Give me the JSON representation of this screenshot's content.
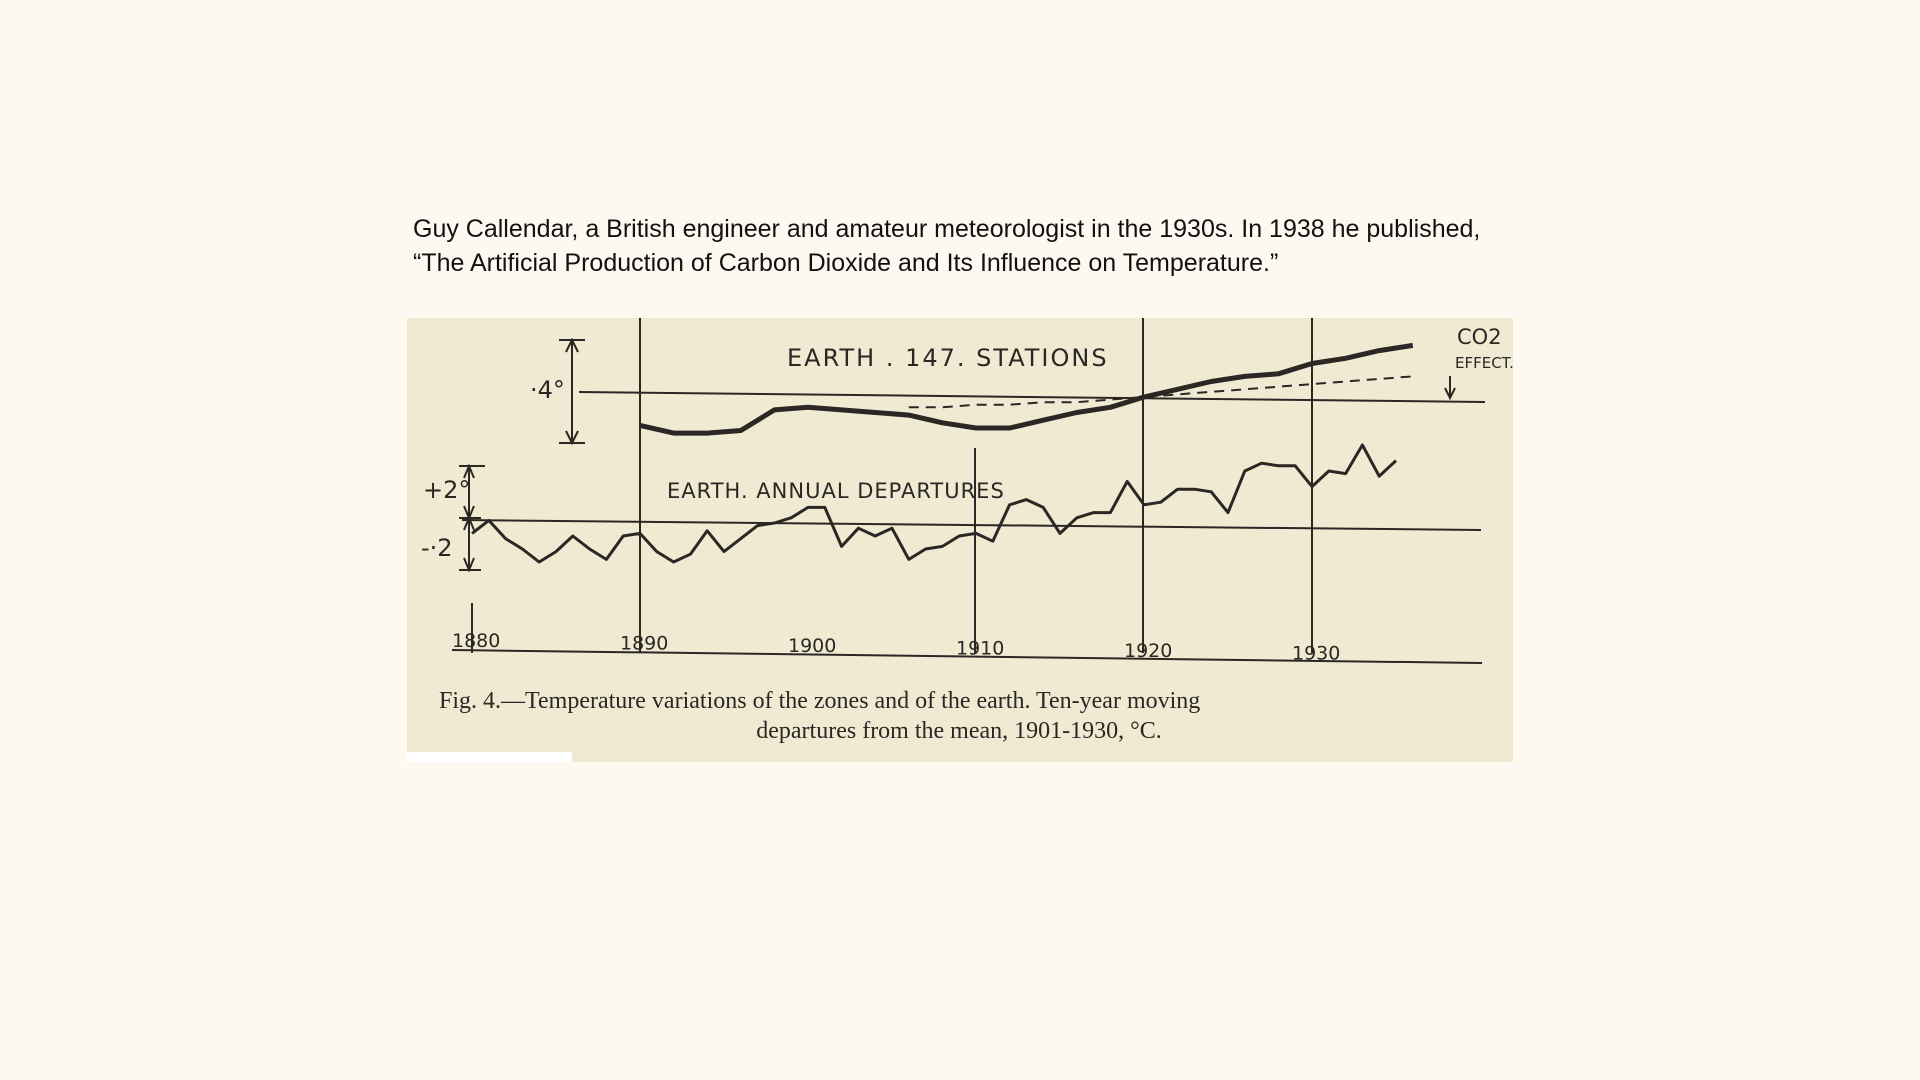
{
  "intro_text": "Guy Callendar, a British engineer and amateur meteorologist in the 1930s. In 1938 he published, “The Artificial Production of Carbon Dioxide and Its Influence on Temperature.”",
  "colors": {
    "page_bg": "#fdf9f1",
    "paper": "#f1ead2",
    "ink": "#2a2724"
  },
  "figure": {
    "caption_line1": "Fig. 4.—Temperature variations of the zones and of the earth.   Ten-year moving",
    "caption_line2": "departures from the mean, 1901-1930, °C.",
    "scale_upper": "·4°",
    "scale_plus": "+2°",
    "scale_minus": "-·2"
  },
  "chart_data": [
    {
      "type": "line",
      "title": "EARTH . 147. STATIONS",
      "annotation_1": "CO2",
      "annotation_2": "EFFECT.",
      "x": [
        1890,
        1892,
        1894,
        1896,
        1898,
        1900,
        1902,
        1904,
        1906,
        1908,
        1910,
        1912,
        1914,
        1916,
        1918,
        1920,
        1922,
        1924,
        1926,
        1928,
        1930,
        1932,
        1934,
        1936
      ],
      "series": [
        {
          "values": [
            -0.11,
            -0.14,
            -0.14,
            -0.13,
            -0.05,
            -0.04,
            -0.05,
            -0.06,
            -0.07,
            -0.1,
            -0.12,
            -0.12,
            -0.09,
            -0.06,
            -0.04,
            0.0,
            0.03,
            0.06,
            0.08,
            0.09,
            0.13,
            0.15,
            0.18,
            0.2
          ]
        },
        {
          "values": [
            null,
            null,
            null,
            null,
            null,
            null,
            null,
            null,
            -0.04,
            -0.04,
            -0.03,
            -0.03,
            -0.02,
            -0.02,
            -0.01,
            0.0,
            0.01,
            0.02,
            0.03,
            0.04,
            0.05,
            0.06,
            0.07,
            0.08
          ]
        }
      ]
    },
    {
      "type": "line",
      "title": "EARTH. ANNUAL DEPARTURES",
      "x": [
        1880,
        1881,
        1882,
        1883,
        1884,
        1885,
        1886,
        1887,
        1888,
        1889,
        1890,
        1891,
        1892,
        1893,
        1894,
        1895,
        1896,
        1897,
        1898,
        1899,
        1900,
        1901,
        1902,
        1903,
        1904,
        1905,
        1906,
        1907,
        1908,
        1909,
        1910,
        1911,
        1912,
        1913,
        1914,
        1915,
        1916,
        1917,
        1918,
        1919,
        1920,
        1921,
        1922,
        1923,
        1924,
        1925,
        1926,
        1927,
        1928,
        1929,
        1930,
        1931,
        1932,
        1933,
        1934,
        1935
      ],
      "values": [
        -0.04,
        0.01,
        -0.06,
        -0.1,
        -0.15,
        -0.11,
        -0.05,
        -0.1,
        -0.14,
        -0.05,
        -0.04,
        -0.11,
        -0.15,
        -0.12,
        -0.03,
        -0.11,
        -0.06,
        -0.01,
        0.0,
        0.02,
        0.06,
        0.06,
        -0.09,
        -0.02,
        -0.05,
        -0.02,
        -0.14,
        -0.1,
        -0.09,
        -0.05,
        -0.04,
        -0.07,
        0.07,
        0.09,
        0.06,
        -0.04,
        0.02,
        0.04,
        0.04,
        0.16,
        0.07,
        0.08,
        0.13,
        0.13,
        0.12,
        0.04,
        0.2,
        0.23,
        0.22,
        0.22,
        0.14,
        0.2,
        0.19,
        0.3,
        0.18,
        0.24
      ],
      "ylim": [
        -0.2,
        0.2
      ]
    },
    {
      "type": "axis",
      "tick_labels": [
        "1880",
        "1890",
        "1900",
        "1910",
        "1920",
        "1930"
      ]
    }
  ]
}
